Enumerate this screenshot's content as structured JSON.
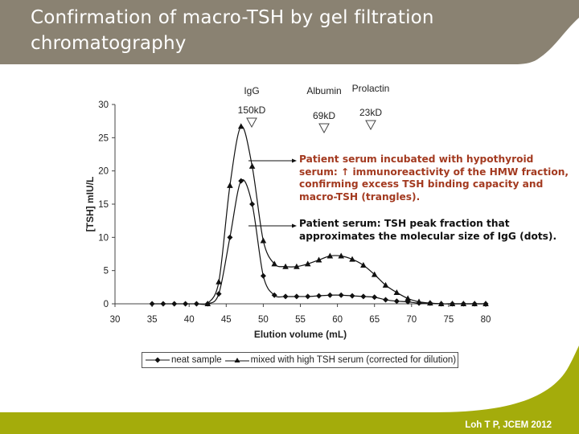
{
  "slide": {
    "title": "Confirmation of macro-TSH by gel filtration chromatography",
    "citation": "Loh T P, JCEM 2012",
    "colors": {
      "header_bg": "#8a8272",
      "footer_bg": "#a4ac0b",
      "annotation_red": "#a33a20",
      "annotation_black": "#111111"
    }
  },
  "annotations": {
    "triangles_note": "Patient serum incubated with hypothyroid serum: ↑ immunoreactivity of the HMW fraction, confirming excess TSH binding capacity and macro-TSH (trangles).",
    "dots_note": "Patient serum: TSH peak fraction that approximates the molecular size of IgG (dots)."
  },
  "markers": [
    {
      "name": "IgG",
      "size": "150kD",
      "x": 48.5
    },
    {
      "name": "Albumin",
      "size": "69kD",
      "x": 58.5
    },
    {
      "name": "Prolactin",
      "size": "23kD",
      "x": 65
    }
  ],
  "chart_data": {
    "type": "line",
    "title": "",
    "xlabel": "Elution volume (mL)",
    "ylabel": "[TSH] mIU/L",
    "xlim": [
      30,
      80
    ],
    "ylim": [
      0,
      30
    ],
    "xticks": [
      30,
      35,
      40,
      45,
      50,
      55,
      60,
      65,
      70,
      75,
      80
    ],
    "yticks": [
      0,
      5,
      10,
      15,
      20,
      25,
      30
    ],
    "grid": false,
    "legend_position": "bottom",
    "x": [
      35,
      36.5,
      38,
      39.5,
      41,
      42.5,
      44,
      45.5,
      47,
      48.5,
      50,
      51.5,
      53,
      54.5,
      56,
      57.5,
      59,
      60.5,
      62,
      63.5,
      65,
      66.5,
      68,
      69.5,
      71,
      72.5,
      74,
      75.5,
      77,
      78.5,
      80
    ],
    "series": [
      {
        "name": "neat sample",
        "marker": "diamond",
        "values": [
          0,
          0,
          0,
          0,
          0,
          0,
          1.5,
          10,
          18.5,
          15,
          4.2,
          1.3,
          1.1,
          1.1,
          1.1,
          1.2,
          1.3,
          1.3,
          1.2,
          1.1,
          1.0,
          0.6,
          0.4,
          0.3,
          0.1,
          0.1,
          0,
          0,
          0,
          0,
          0
        ]
      },
      {
        "name": "mixed with high TSH serum (corrected for dilution)",
        "marker": "triangle",
        "values": [
          null,
          null,
          null,
          null,
          null,
          0,
          3.3,
          17.8,
          26.7,
          20.7,
          9.5,
          6.0,
          5.6,
          5.6,
          6.0,
          6.6,
          7.2,
          7.2,
          6.7,
          5.8,
          4.4,
          2.8,
          1.7,
          0.8,
          0.3,
          0.1,
          0,
          0,
          0,
          0,
          0
        ]
      }
    ]
  },
  "legend": {
    "items": [
      {
        "label": "neat sample"
      },
      {
        "label": "mixed with high TSH serum (corrected for dilution)"
      }
    ]
  }
}
